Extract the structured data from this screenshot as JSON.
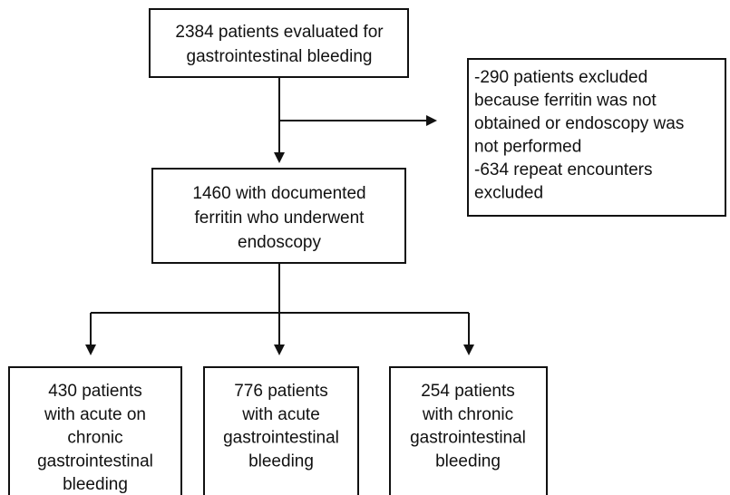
{
  "nodes": [
    {
      "lines": [
        "2384 patients evaluated for",
        "gastrointestinal bleeding"
      ]
    },
    {
      "lines": [
        "-290 patients excluded",
        "because ferritin was not",
        "obtained or endoscopy was",
        "not performed",
        "-634 repeat encounters",
        "excluded"
      ]
    },
    {
      "lines": [
        "1460 with documented",
        "ferritin who underwent",
        "endoscopy"
      ]
    },
    {
      "lines": [
        "430 patients",
        "with acute on",
        "chronic",
        "gastrointestinal",
        "bleeding"
      ]
    },
    {
      "lines": [
        "776 patients",
        "with acute",
        "gastrointestinal",
        "bleeding"
      ]
    },
    {
      "lines": [
        "254 patients",
        "with chronic",
        "gastrointestinal",
        "bleeding"
      ]
    }
  ]
}
